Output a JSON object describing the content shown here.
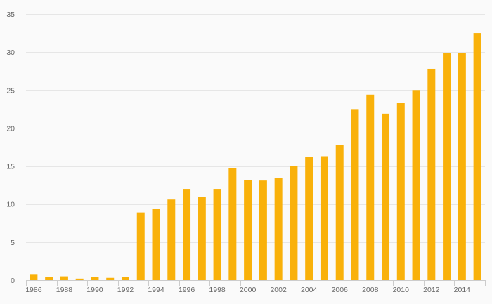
{
  "chart_data": {
    "type": "bar",
    "categories": [
      "1986",
      "1987",
      "1988",
      "1989",
      "1990",
      "1991",
      "1992",
      "1993",
      "1994",
      "1995",
      "1996",
      "1997",
      "1998",
      "1999",
      "2000",
      "2001",
      "2002",
      "2003",
      "2004",
      "2005",
      "2006",
      "2007",
      "2008",
      "2009",
      "2010",
      "2011",
      "2012",
      "2013",
      "2014",
      "2015"
    ],
    "values": [
      0.8,
      0.4,
      0.5,
      0.2,
      0.4,
      0.3,
      0.4,
      8.9,
      9.4,
      10.6,
      12.0,
      10.9,
      12.0,
      14.7,
      13.2,
      13.1,
      13.4,
      15.0,
      16.2,
      16.3,
      17.8,
      22.5,
      24.4,
      21.9,
      23.3,
      25.0,
      27.8,
      29.9,
      29.9,
      32.5
    ],
    "x_tick_labels": [
      "1986",
      "1988",
      "1990",
      "1992",
      "1994",
      "1996",
      "1998",
      "2000",
      "2002",
      "2004",
      "2006",
      "2008",
      "2010",
      "2012",
      "2014"
    ],
    "y_ticks": [
      0,
      5,
      10,
      15,
      20,
      25,
      30,
      35
    ],
    "ylim": [
      0,
      35
    ],
    "title": "",
    "xlabel": "",
    "ylabel": "",
    "grid": true,
    "bar_color": "#f9b10a",
    "grid_color": "#e6e6e6",
    "axis_color": "#cccccc",
    "label_color": "#666666",
    "background": "#fafafa"
  }
}
